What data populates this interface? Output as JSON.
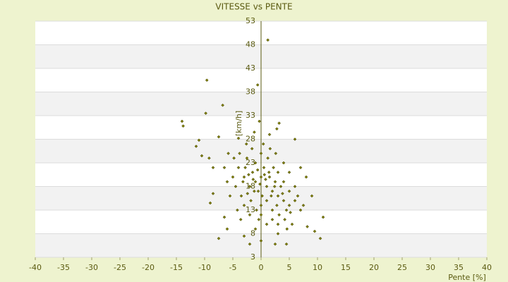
{
  "chart_data": {
    "type": "scatter",
    "title": "VITESSE vs PENTE",
    "x_label": "Pente [%]",
    "y_label": "[km/h]",
    "color": "#7f7f00",
    "grid": true,
    "banded": true,
    "xlim": [
      -40,
      40
    ],
    "xticks": [
      -40,
      -35,
      -30,
      -25,
      -20,
      -15,
      -10,
      -5,
      0,
      5,
      10,
      15,
      20,
      25,
      30,
      35,
      40
    ],
    "ylim": [
      3,
      53
    ],
    "yticks": [
      3,
      8,
      13,
      18,
      23,
      28,
      33,
      38,
      43,
      48,
      53
    ],
    "x": [
      1.2,
      -9.6,
      -0.6,
      -6.8,
      -9.8,
      -14,
      -13.8,
      -0.3,
      3.2,
      2.8,
      -11,
      -11.5,
      6,
      -7.5,
      -4,
      -1.2,
      1.5,
      -9.2,
      -10.5,
      -8.5,
      7,
      8,
      9,
      11,
      10.5,
      9.5,
      8.2,
      7.5,
      -7.5,
      -6,
      -6.5,
      -9,
      -8.5,
      -2,
      2.5,
      4.5,
      0,
      -3,
      3,
      5.5,
      -4,
      -3,
      -2,
      -1,
      0,
      1,
      2,
      3,
      4,
      5,
      -4.5,
      -3.5,
      -2.5,
      -1.5,
      -0.5,
      0.5,
      1.5,
      2.5,
      3.5,
      4.5,
      -5,
      -3,
      -2,
      -1,
      0,
      1,
      2,
      3,
      4,
      5,
      -3.8,
      -2.8,
      -1.8,
      -0.8,
      0.2,
      1.2,
      2.2,
      3.2,
      4.2,
      5.2,
      -4.2,
      -3.2,
      -2.2,
      -1.2,
      -0.2,
      0.8,
      1.8,
      2.8,
      3.8,
      6,
      -5.5,
      -4.8,
      -1.6,
      0.4,
      1.6,
      -0.4,
      1,
      2,
      -1,
      3,
      -6,
      -6.5,
      -5.8,
      -2.6,
      2.6,
      4,
      5,
      6,
      6.5,
      7,
      -0.6,
      0.6,
      -1.4,
      1.4,
      -2.4,
      2.4,
      0,
      0,
      -3.6,
      4.6
    ],
    "y": [
      49,
      40.5,
      39.5,
      35.2,
      33.5,
      31.8,
      30.8,
      31.8,
      31.4,
      30.2,
      27.8,
      26.5,
      28,
      28.5,
      28.2,
      29.5,
      29,
      24,
      24.5,
      22,
      22,
      20,
      16,
      11.5,
      7,
      8.5,
      9.5,
      14,
      7,
      9,
      11.5,
      14.5,
      16.5,
      5.8,
      5.8,
      5.8,
      6.5,
      7.5,
      8,
      10,
      22,
      20,
      18,
      19,
      20,
      18,
      17,
      16,
      15,
      14,
      18,
      16,
      24,
      21,
      17,
      22,
      20,
      19,
      18,
      13,
      20,
      14,
      12,
      23,
      25,
      15,
      13,
      21,
      19,
      17,
      25,
      22,
      15,
      13,
      16,
      24,
      22,
      12,
      11,
      12.5,
      13,
      19,
      20.5,
      17,
      18.5,
      19.5,
      16,
      14,
      16.5,
      15,
      16,
      24,
      26,
      27,
      26,
      11,
      10,
      11,
      9,
      10,
      19,
      22,
      25,
      27,
      25,
      23,
      21,
      18,
      16,
      13,
      21.5,
      20.5,
      19.5,
      21,
      16.5,
      18,
      14,
      12,
      11,
      9
    ]
  }
}
